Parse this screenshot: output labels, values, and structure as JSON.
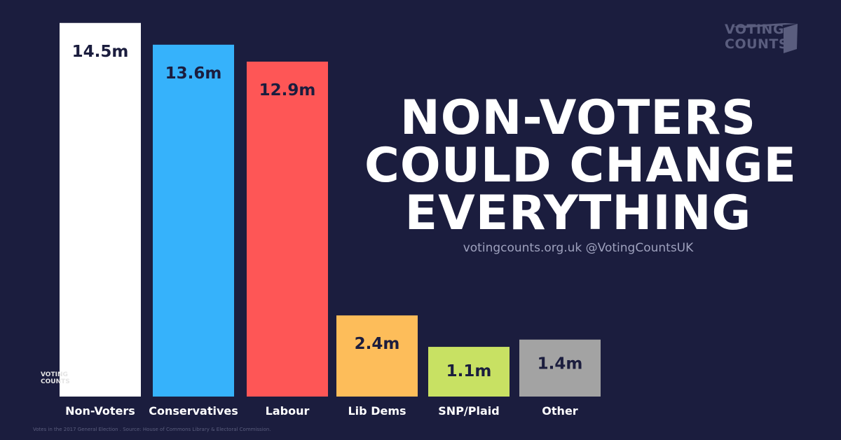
{
  "logo": {
    "line1": "VOTING",
    "line2": "COUNTS"
  },
  "headline": [
    "NON-VOTERS",
    "COULD CHANGE",
    "EVERYTHING"
  ],
  "subtitle": "votingcounts.org.uk @VotingCountsUK",
  "footnote": "Votes in the 2017 General Election . Source: House of Commons Library & Electoral Commission.",
  "colors": {
    "background": "#1b1d3e",
    "label_text": "#1b1d3e"
  },
  "chart_data": {
    "type": "bar",
    "categories": [
      "Non-Voters",
      "Conservatives",
      "Labour",
      "Lib Dems",
      "SNP/Plaid",
      "Other"
    ],
    "values": [
      14.5,
      13.6,
      12.9,
      2.4,
      1.1,
      1.4
    ],
    "data_labels": [
      "14.5m",
      "13.6m",
      "12.9m",
      "2.4m",
      "1.1m",
      "1.4m"
    ],
    "unit": "m",
    "colors": [
      "#ffffff",
      "#36b2fb",
      "#fe5656",
      "#fdbd5a",
      "#c8e163",
      "#a3a3a3"
    ],
    "grid": false
  }
}
